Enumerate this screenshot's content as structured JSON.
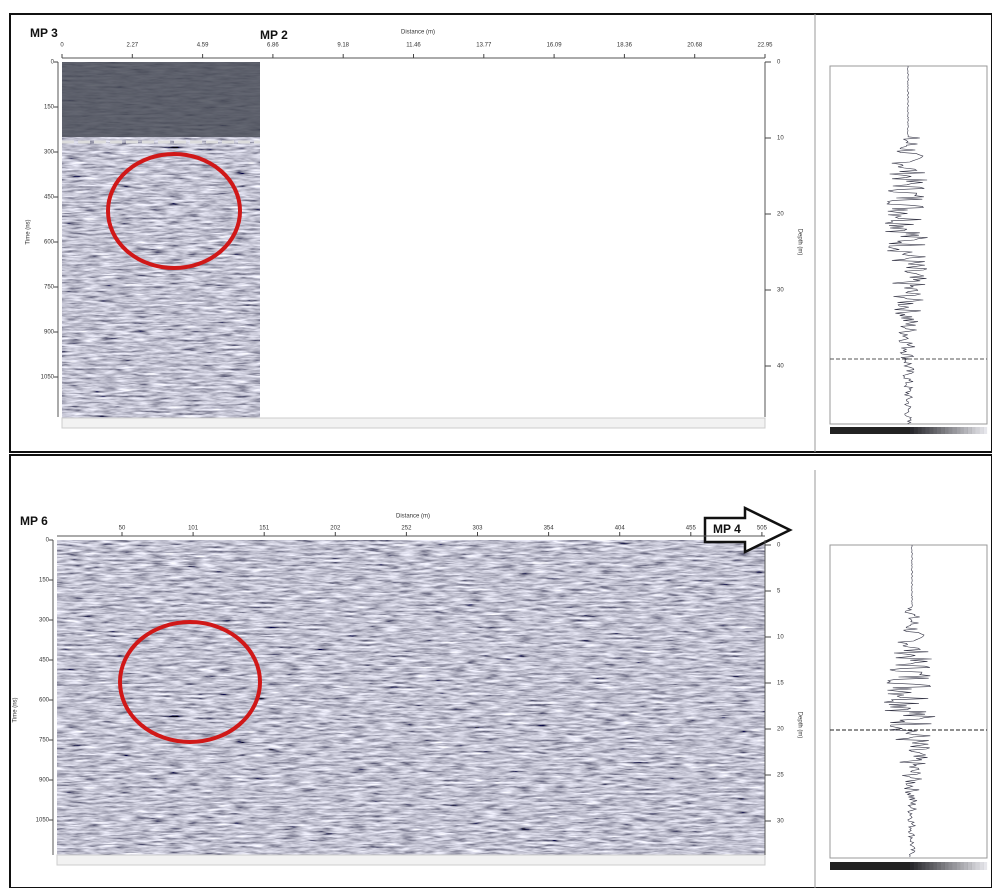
{
  "panels": [
    {
      "label_left": "MP 3",
      "label_right": "MP 2",
      "distance_title": "Distance (m)",
      "distance_ticks": [
        "0",
        "2.27",
        "4.59",
        "6.86",
        "9.18",
        "11.46",
        "13.77",
        "16.09",
        "18.36",
        "20.68",
        "22.95"
      ],
      "time_title": "Time (ns)",
      "time_ticks": [
        "0",
        "150",
        "300",
        "450",
        "600",
        "750",
        "900",
        "1050"
      ],
      "depth_title": "Depth (m)",
      "depth_ticks": [
        "0",
        "10",
        "20",
        "30",
        "40"
      ]
    },
    {
      "label_left": "MP 6",
      "label_right": "MP 4",
      "distance_title": "Distance (m)",
      "distance_ticks": [
        "50",
        "101",
        "151",
        "202",
        "252",
        "303",
        "354",
        "404",
        "455",
        "505"
      ],
      "time_title": "Time (ns)",
      "time_ticks": [
        "0",
        "150",
        "300",
        "450",
        "600",
        "750",
        "900",
        "1050"
      ],
      "depth_title": "Depth (m)",
      "depth_ticks": [
        "0",
        "5",
        "10",
        "15",
        "20",
        "25",
        "30"
      ]
    }
  ]
}
